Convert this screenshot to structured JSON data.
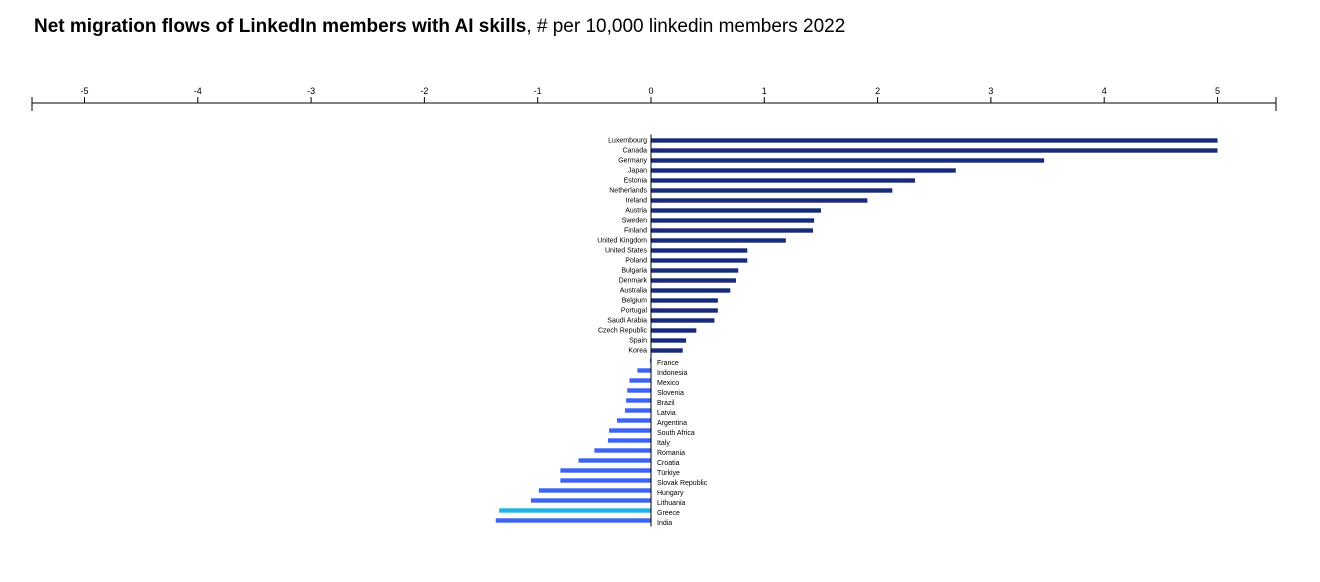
{
  "title": {
    "bold": "Net migration flows of LinkedIn members with AI skills",
    "rest": ", # per 10,000 linkedin members 2022"
  },
  "colors": {
    "positive": "#1a2a7a",
    "negative": "#3d63f2",
    "highlight": "#1fb4e6",
    "axis": "#000000"
  },
  "chart_data": {
    "type": "bar",
    "orientation": "horizontal",
    "title": "Net migration flows of LinkedIn members with AI skills, # per 10,000 linkedin members 2022",
    "xlabel": "",
    "ylabel": "",
    "xlim": [
      -5.45,
      5.5
    ],
    "xticks": [
      -5,
      -4,
      -3,
      -2,
      -1,
      0,
      1,
      2,
      3,
      4,
      5
    ],
    "grid": false,
    "highlight": "Greece",
    "categories": [
      "Luxembourg",
      "Canada",
      "Germany",
      "Japan",
      "Estonia",
      "Netherlands",
      "Ireland",
      "Austria",
      "Sweden",
      "Finland",
      "United Kingdom",
      "United States",
      "Poland",
      "Bulgaria",
      "Denmark",
      "Australia",
      "Belgium",
      "Portugal",
      "Saudi Arabia",
      "Czech Republic",
      "Spain",
      "Korea",
      "France",
      "Indonesia",
      "Mexico",
      "Slovenia",
      "Brazil",
      "Latvia",
      "Argentina",
      "South Africa",
      "Italy",
      "Romania",
      "Croatia",
      "Türkiye",
      "Slovak Republic",
      "Hungary",
      "Lithuania",
      "Greece",
      "India"
    ],
    "values": [
      5.0,
      5.0,
      3.47,
      2.69,
      2.33,
      2.13,
      1.91,
      1.5,
      1.44,
      1.43,
      1.19,
      0.85,
      0.85,
      0.77,
      0.75,
      0.7,
      0.59,
      0.59,
      0.56,
      0.4,
      0.31,
      0.28,
      -0.01,
      -0.12,
      -0.19,
      -0.21,
      -0.22,
      -0.23,
      -0.3,
      -0.37,
      -0.38,
      -0.5,
      -0.64,
      -0.8,
      -0.8,
      -0.99,
      -1.06,
      -1.34,
      -1.37
    ]
  }
}
